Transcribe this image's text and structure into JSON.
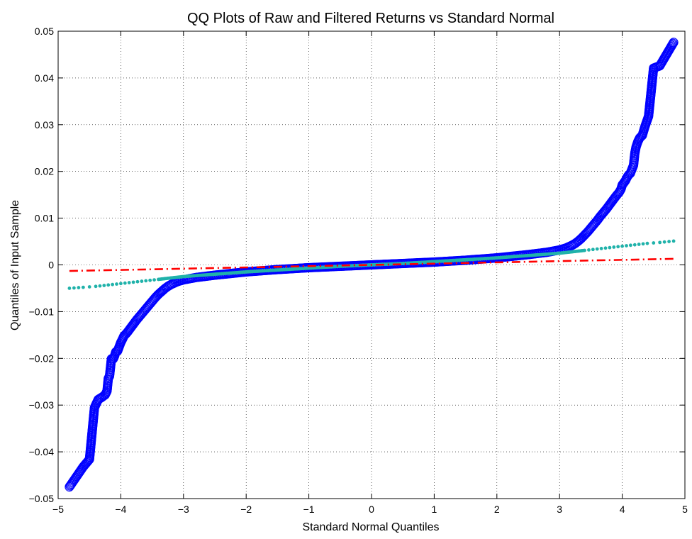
{
  "chart_data": {
    "type": "scatter",
    "title": "QQ Plots of Raw and Filtered Returns vs Standard Normal",
    "xlabel": "Standard Normal Quantiles",
    "ylabel": "Quantiles of Input Sample",
    "xlim": [
      -5,
      5
    ],
    "ylim": [
      -0.05,
      0.05
    ],
    "grid": true,
    "x_ticks": [
      -5,
      -4,
      -3,
      -2,
      -1,
      0,
      1,
      2,
      3,
      4,
      5
    ],
    "x_tick_labels": [
      "−5",
      "−4",
      "−3",
      "−2",
      "−1",
      "0",
      "1",
      "2",
      "3",
      "4",
      "5"
    ],
    "y_ticks": [
      -0.05,
      -0.04,
      -0.03,
      -0.02,
      -0.01,
      0,
      0.01,
      0.02,
      0.03,
      0.04,
      0.05
    ],
    "y_tick_labels": [
      "−0.05",
      "−0.04",
      "−0.03",
      "−0.02",
      "−0.01",
      "0",
      "0.01",
      "0.02",
      "0.03",
      "0.04",
      "0.05"
    ],
    "series": [
      {
        "marker": "circle",
        "color": "#0000ff",
        "points": [
          [
            -4.82,
            -0.0475
          ],
          [
            -4.6,
            -0.0432
          ],
          [
            -4.5,
            -0.0416
          ],
          [
            -4.42,
            -0.0305
          ],
          [
            -4.36,
            -0.0288
          ],
          [
            -4.3,
            -0.0283
          ],
          [
            -4.25,
            -0.0278
          ],
          [
            -4.22,
            -0.027
          ],
          [
            -4.2,
            -0.0243
          ],
          [
            -4.18,
            -0.0238
          ],
          [
            -4.15,
            -0.0201
          ],
          [
            -4.12,
            -0.0201
          ],
          [
            -4.1,
            -0.0195
          ],
          [
            -4.08,
            -0.0186
          ],
          [
            -4.05,
            -0.0184
          ],
          [
            -4.02,
            -0.0173
          ],
          [
            -4.0,
            -0.0166
          ],
          [
            -3.97,
            -0.0158
          ],
          [
            -3.95,
            -0.0152
          ],
          [
            -3.9,
            -0.0145
          ],
          [
            -3.85,
            -0.0136
          ],
          [
            -3.8,
            -0.0127
          ],
          [
            -3.75,
            -0.0118
          ],
          [
            -3.7,
            -0.011
          ],
          [
            -3.65,
            -0.0102
          ],
          [
            -3.6,
            -0.0094
          ],
          [
            -3.55,
            -0.0086
          ],
          [
            -3.5,
            -0.0078
          ],
          [
            -3.45,
            -0.007
          ],
          [
            -3.4,
            -0.0063
          ],
          [
            -3.35,
            -0.0057
          ],
          [
            -3.3,
            -0.0051
          ],
          [
            -3.25,
            -0.0046
          ],
          [
            -3.2,
            -0.0042
          ],
          [
            -3.1,
            -0.0036
          ],
          [
            -3.0,
            -0.0032
          ],
          [
            -2.8,
            -0.0027
          ],
          [
            -2.5,
            -0.0022
          ],
          [
            -2.0,
            -0.0015
          ],
          [
            -1.5,
            -0.001
          ],
          [
            -1.0,
            -0.0006
          ],
          [
            -0.5,
            -0.0003
          ],
          [
            0,
            0
          ],
          [
            0.5,
            0.0003
          ],
          [
            1.0,
            0.0006
          ],
          [
            1.5,
            0.001
          ],
          [
            2.0,
            0.0015
          ],
          [
            2.5,
            0.0022
          ],
          [
            2.8,
            0.0027
          ],
          [
            3.0,
            0.0032
          ],
          [
            3.1,
            0.0036
          ],
          [
            3.2,
            0.0042
          ],
          [
            3.25,
            0.0046
          ],
          [
            3.3,
            0.0051
          ],
          [
            3.35,
            0.0057
          ],
          [
            3.4,
            0.0064
          ],
          [
            3.45,
            0.0071
          ],
          [
            3.5,
            0.0079
          ],
          [
            3.55,
            0.0087
          ],
          [
            3.6,
            0.0095
          ],
          [
            3.65,
            0.0104
          ],
          [
            3.7,
            0.0112
          ],
          [
            3.75,
            0.012
          ],
          [
            3.8,
            0.0129
          ],
          [
            3.85,
            0.0138
          ],
          [
            3.9,
            0.0147
          ],
          [
            3.95,
            0.0155
          ],
          [
            3.98,
            0.0162
          ],
          [
            4.0,
            0.0171
          ],
          [
            4.05,
            0.018
          ],
          [
            4.08,
            0.0188
          ],
          [
            4.1,
            0.0192
          ],
          [
            4.13,
            0.0196
          ],
          [
            4.15,
            0.0203
          ],
          [
            4.18,
            0.0213
          ],
          [
            4.2,
            0.0238
          ],
          [
            4.22,
            0.0252
          ],
          [
            4.25,
            0.0264
          ],
          [
            4.28,
            0.0272
          ],
          [
            4.32,
            0.0277
          ],
          [
            4.36,
            0.0295
          ],
          [
            4.42,
            0.0318
          ],
          [
            4.5,
            0.0421
          ],
          [
            4.6,
            0.0426
          ],
          [
            4.82,
            0.0476
          ]
        ]
      },
      {
        "marker": "dot",
        "color": "#20b2aa",
        "points": [
          [
            -4.82,
            -0.005
          ],
          [
            -4.6,
            -0.0048
          ],
          [
            -4.5,
            -0.0047
          ],
          [
            -4.4,
            -0.0046
          ],
          [
            -4.2,
            -0.0043
          ],
          [
            -4.0,
            -0.004
          ],
          [
            -3.8,
            -0.0037
          ],
          [
            -3.6,
            -0.0034
          ],
          [
            -3.4,
            -0.0031
          ],
          [
            -3.2,
            -0.0028
          ],
          [
            -3.0,
            -0.0025
          ],
          [
            -2.5,
            -0.002
          ],
          [
            -2.0,
            -0.0015
          ],
          [
            -1.5,
            -0.0011
          ],
          [
            -1.0,
            -0.0007
          ],
          [
            -0.5,
            -0.0003
          ],
          [
            0,
            0
          ],
          [
            0.5,
            0.0003
          ],
          [
            1.0,
            0.0007
          ],
          [
            1.5,
            0.0011
          ],
          [
            2.0,
            0.0015
          ],
          [
            2.5,
            0.002
          ],
          [
            3.0,
            0.0025
          ],
          [
            3.2,
            0.0028
          ],
          [
            3.4,
            0.0031
          ],
          [
            3.6,
            0.0034
          ],
          [
            3.8,
            0.0037
          ],
          [
            4.0,
            0.004
          ],
          [
            4.2,
            0.0043
          ],
          [
            4.4,
            0.0046
          ],
          [
            4.5,
            0.0047
          ],
          [
            4.6,
            0.0048
          ],
          [
            4.82,
            0.0051
          ]
        ]
      },
      {
        "marker": "dashdot-line",
        "color": "#ff0000",
        "points": [
          [
            -4.82,
            -0.0013
          ],
          [
            4.82,
            0.0013
          ]
        ]
      }
    ]
  }
}
